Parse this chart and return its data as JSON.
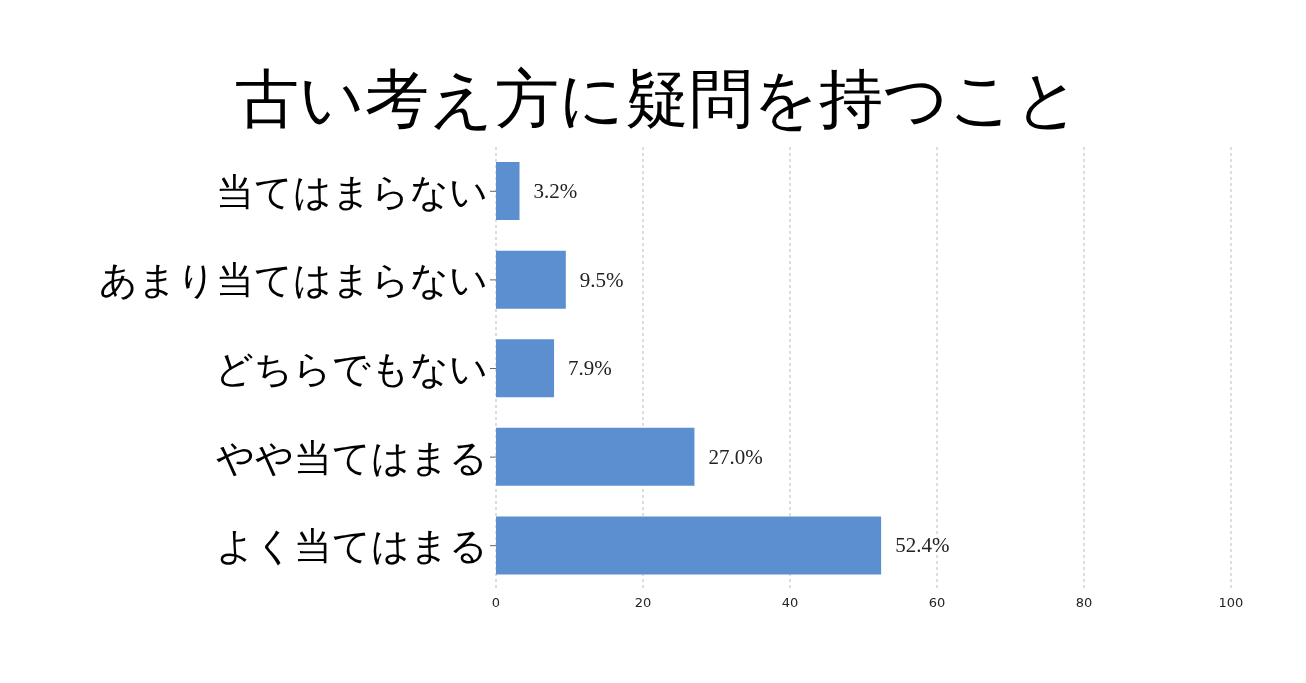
{
  "chart_data": {
    "type": "bar",
    "orientation": "horizontal",
    "title": "古い考え方に疑問を持つこと",
    "categories": [
      "当てはまらない",
      "あまり当てはまらない",
      "どちらでもない",
      "やや当てはまる",
      "よく当てはまる"
    ],
    "values": [
      3.2,
      9.5,
      7.9,
      27.0,
      52.4
    ],
    "value_labels": [
      "3.2%",
      "9.5%",
      "7.9%",
      "27.0%",
      "52.4%"
    ],
    "color": "#5b8fd0",
    "xlim": [
      0,
      100
    ],
    "xticks": [
      0,
      20,
      40,
      60,
      80,
      100
    ],
    "grid": "x",
    "line_style": "dashed",
    "legend": false
  }
}
